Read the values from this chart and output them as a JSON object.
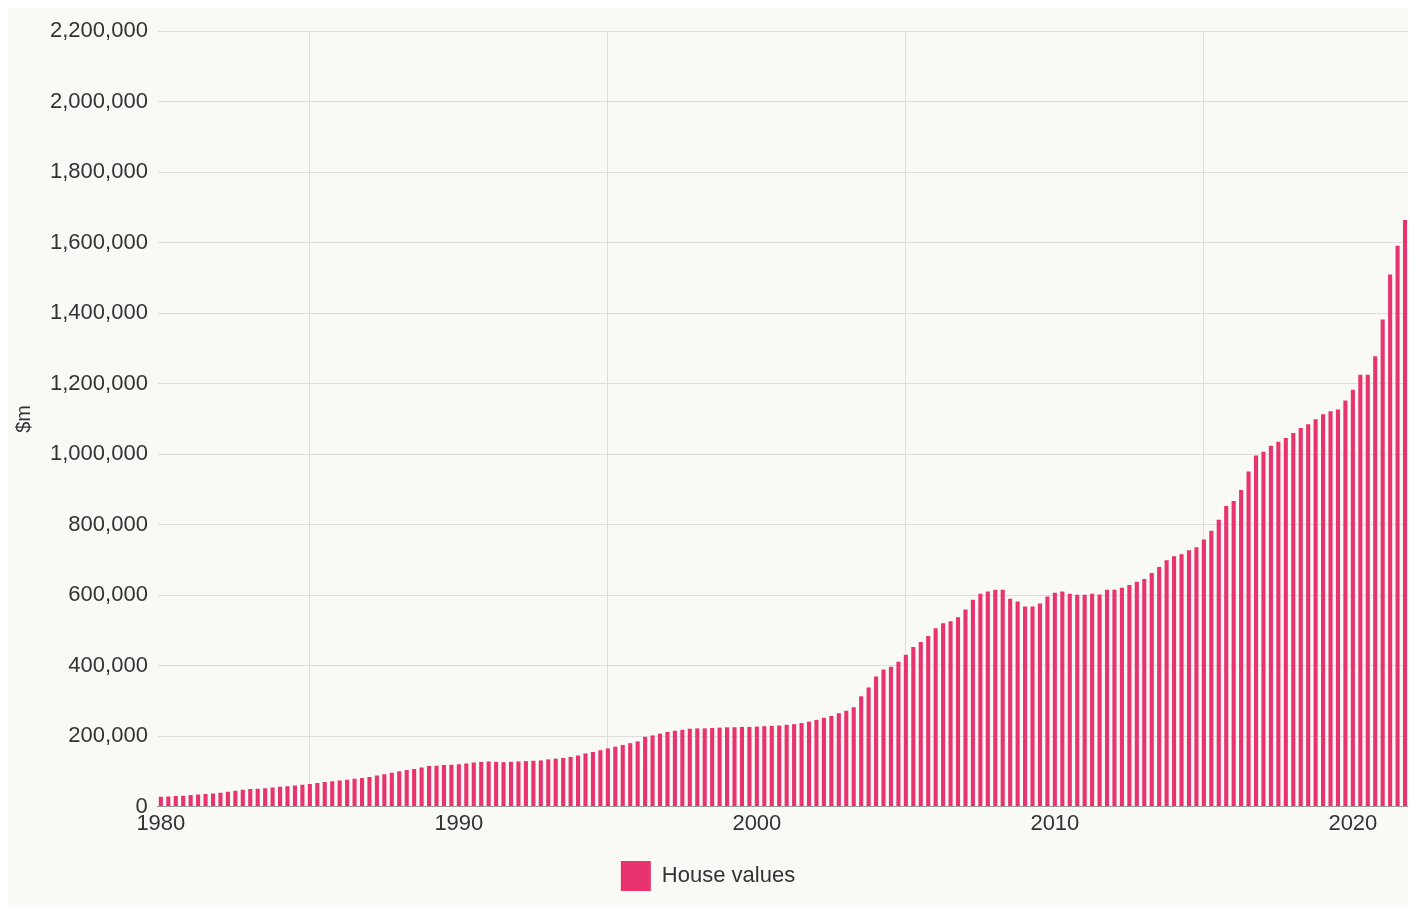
{
  "chart_data": {
    "type": "bar",
    "ylabel": "$m",
    "legend": "bottom",
    "grid": true,
    "xlim": [
      1979.9,
      2021.85
    ],
    "xticks": [
      1980,
      1990,
      2000,
      2010,
      2020
    ],
    "ylim": [
      0,
      2200000
    ],
    "yticks": [
      0,
      {
        "value": 200000,
        "label": "200,000"
      },
      {
        "value": 400000,
        "label": "400,000"
      },
      {
        "value": 600000,
        "label": "600,000"
      },
      {
        "value": 800000,
        "label": "800,000"
      },
      {
        "value": 1000000,
        "label": "1,000,000"
      },
      {
        "value": 1200000,
        "label": "1,200,000"
      },
      {
        "value": 1400000,
        "label": "1,400,000"
      },
      {
        "value": 1600000,
        "label": "1,600,000"
      },
      {
        "value": 1800000,
        "label": "1,800,000"
      },
      {
        "value": 2000000,
        "label": "2,000,000"
      },
      {
        "value": 2200000,
        "label": "2,200,000"
      }
    ],
    "x": [
      1980,
      1980.25,
      1980.5,
      1980.75,
      1981,
      1981.25,
      1981.5,
      1981.75,
      1982,
      1982.25,
      1982.5,
      1982.75,
      1983,
      1983.25,
      1983.5,
      1983.75,
      1984,
      1984.25,
      1984.5,
      1984.75,
      1985,
      1985.25,
      1985.5,
      1985.75,
      1986,
      1986.25,
      1986.5,
      1986.75,
      1987,
      1987.25,
      1987.5,
      1987.75,
      1988,
      1988.25,
      1988.5,
      1988.75,
      1989,
      1989.25,
      1989.5,
      1989.75,
      1990,
      1990.25,
      1990.5,
      1990.75,
      1991,
      1991.25,
      1991.5,
      1991.75,
      1992,
      1992.25,
      1992.5,
      1992.75,
      1993,
      1993.25,
      1993.5,
      1993.75,
      1994,
      1994.25,
      1994.5,
      1994.75,
      1995,
      1995.25,
      1995.5,
      1995.75,
      1996,
      1996.25,
      1996.5,
      1996.75,
      1997,
      1997.25,
      1997.5,
      1997.75,
      1998,
      1998.25,
      1998.5,
      1998.75,
      1999,
      1999.25,
      1999.5,
      1999.75,
      2000,
      2000.25,
      2000.5,
      2000.75,
      2001,
      2001.25,
      2001.5,
      2001.75,
      2002,
      2002.25,
      2002.5,
      2002.75,
      2003,
      2003.25,
      2003.5,
      2003.75,
      2004,
      2004.25,
      2004.5,
      2004.75,
      2005,
      2005.25,
      2005.5,
      2005.75,
      2006,
      2006.25,
      2006.5,
      2006.75,
      2007,
      2007.25,
      2007.5,
      2007.75,
      2008,
      2008.25,
      2008.5,
      2008.75,
      2009,
      2009.25,
      2009.5,
      2009.75,
      2010,
      2010.25,
      2010.5,
      2010.75,
      2011,
      2011.25,
      2011.5,
      2011.75,
      2012,
      2012.25,
      2012.5,
      2012.75,
      2013,
      2013.25,
      2013.5,
      2013.75,
      2014,
      2014.25,
      2014.5,
      2014.75,
      2015,
      2015.25,
      2015.5,
      2015.75,
      2016,
      2016.25,
      2016.5,
      2016.75,
      2017,
      2017.25,
      2017.5,
      2017.75,
      2018,
      2018.25,
      2018.5,
      2018.75,
      2019,
      2019.25,
      2019.5,
      2019.75,
      2020,
      2020.25,
      2020.5,
      2020.75,
      2021,
      2021.25,
      2021.5,
      2021.75
    ],
    "series": [
      {
        "name": "House values",
        "color": "#e8336f",
        "values": [
          28000,
          29000,
          30000,
          31000,
          33000,
          34000,
          36000,
          37000,
          39000,
          42000,
          45000,
          48000,
          50000,
          51000,
          52000,
          54000,
          56000,
          58000,
          60000,
          62000,
          64000,
          67000,
          70000,
          72000,
          74000,
          76000,
          79000,
          81000,
          84000,
          88000,
          92000,
          96000,
          100000,
          104000,
          107000,
          111000,
          115000,
          116000,
          118000,
          119000,
          120000,
          122000,
          125000,
          127000,
          128000,
          127000,
          126000,
          127000,
          128000,
          129000,
          130000,
          131000,
          134000,
          136000,
          138000,
          141000,
          145000,
          151000,
          155000,
          160000,
          165000,
          170000,
          175000,
          180000,
          185000,
          198000,
          202000,
          207000,
          212000,
          215000,
          218000,
          221000,
          222000,
          222000,
          223000,
          224000,
          225000,
          225000,
          226000,
          226000,
          227000,
          228000,
          229000,
          230000,
          232000,
          234000,
          237000,
          241000,
          246000,
          252000,
          257000,
          265000,
          272000,
          282000,
          313000,
          338000,
          369000,
          389000,
          397000,
          411000,
          431000,
          453000,
          467000,
          484000,
          506000,
          520000,
          526000,
          537000,
          559000,
          587000,
          604000,
          610000,
          615000,
          615000,
          590000,
          582000,
          568000,
          568000,
          576000,
          596000,
          607000,
          610000,
          604000,
          601000,
          601000,
          604000,
          602000,
          615000,
          615000,
          621000,
          629000,
          638000,
          646000,
          663000,
          680000,
          699000,
          710000,
          716000,
          727000,
          736000,
          758000,
          783000,
          814000,
          853000,
          867000,
          898000,
          951000,
          996000,
          1007000,
          1024000,
          1035000,
          1046000,
          1060000,
          1074000,
          1085000,
          1099000,
          1113000,
          1122000,
          1127000,
          1152000,
          1183000,
          1225000,
          1225000,
          1278000,
          1382000,
          1510000,
          1591000,
          1664000
        ]
      }
    ]
  }
}
